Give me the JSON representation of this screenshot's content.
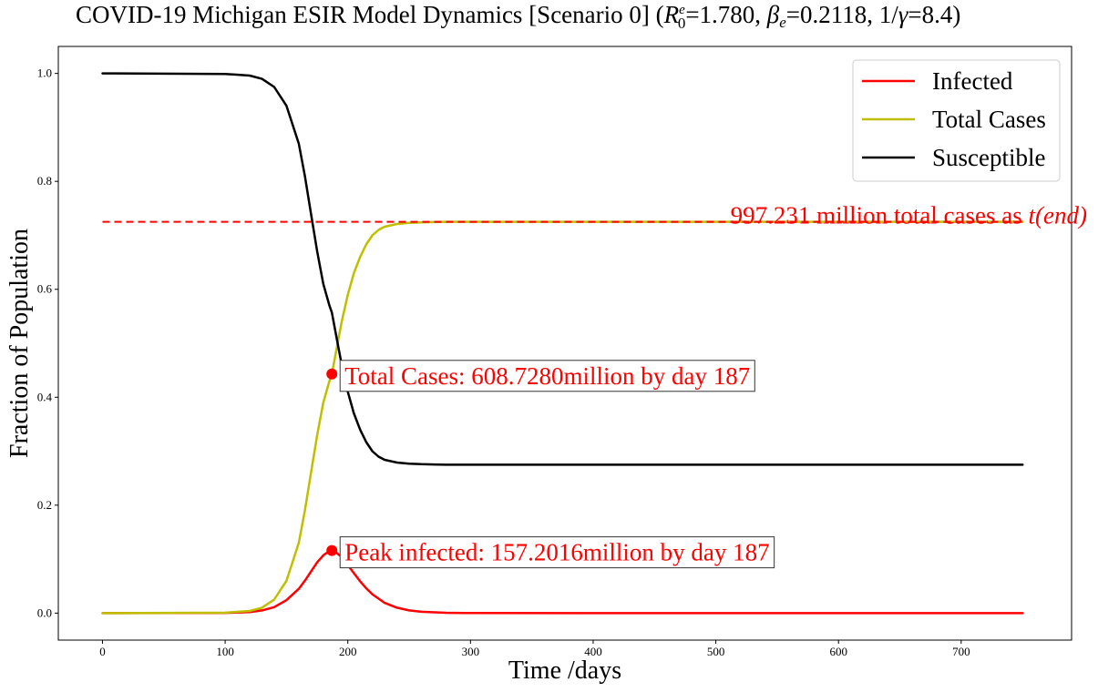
{
  "chart_data": {
    "type": "line",
    "title": {
      "prefix": "COVID-19 Michigan ESIR Model Dynamics [Scenario 0] (",
      "r_symbol": "R",
      "r_sup": "e",
      "r_sub": "0",
      "r_value": "=1.780, ",
      "beta_symbol": "β",
      "beta_sub": "e",
      "beta_value": "=0.2118, 1/",
      "gamma_symbol": "γ",
      "gamma_value": "=8.4)"
    },
    "xlabel": "Time /days",
    "ylabel": "Fraction of Population",
    "xlim": [
      -36,
      790
    ],
    "ylim": [
      -0.05,
      1.05
    ],
    "xticks": [
      0,
      100,
      200,
      300,
      400,
      500,
      600,
      700
    ],
    "yticks": [
      0.0,
      0.2,
      0.4,
      0.6,
      0.8,
      1.0
    ],
    "ytick_labels": [
      "0.0",
      "0.2",
      "0.4",
      "0.6",
      "0.8",
      "1.0"
    ],
    "grid": false,
    "legend_position": "top-right",
    "series": [
      {
        "name": "Infected",
        "color": "#ff0000",
        "x": [
          0,
          100,
          120,
          130,
          140,
          150,
          160,
          165,
          170,
          175,
          180,
          185,
          187,
          190,
          195,
          200,
          205,
          210,
          215,
          220,
          230,
          240,
          250,
          260,
          280,
          300,
          400,
          500,
          600,
          750
        ],
        "y": [
          0,
          0.0005,
          0.002,
          0.005,
          0.011,
          0.024,
          0.045,
          0.06,
          0.077,
          0.094,
          0.107,
          0.115,
          0.116,
          0.113,
          0.104,
          0.089,
          0.074,
          0.059,
          0.046,
          0.035,
          0.019,
          0.01,
          0.005,
          0.0025,
          0.0006,
          0.0001,
          0,
          0,
          0,
          0
        ]
      },
      {
        "name": "Total Cases",
        "color": "#bfbf00",
        "x": [
          0,
          100,
          120,
          130,
          140,
          150,
          160,
          165,
          170,
          175,
          180,
          185,
          187,
          190,
          195,
          200,
          205,
          210,
          215,
          220,
          225,
          230,
          240,
          250,
          260,
          270,
          280,
          300,
          400,
          750
        ],
        "y": [
          0,
          0.0008,
          0.004,
          0.01,
          0.025,
          0.06,
          0.13,
          0.19,
          0.26,
          0.33,
          0.39,
          0.43,
          0.443,
          0.48,
          0.54,
          0.59,
          0.63,
          0.66,
          0.683,
          0.7,
          0.71,
          0.716,
          0.721,
          0.723,
          0.724,
          0.7245,
          0.725,
          0.725,
          0.725,
          0.725
        ]
      },
      {
        "name": "Susceptible",
        "color": "#000000",
        "x": [
          0,
          100,
          120,
          130,
          140,
          150,
          160,
          165,
          170,
          175,
          180,
          185,
          187,
          190,
          195,
          200,
          205,
          210,
          215,
          220,
          225,
          230,
          240,
          250,
          260,
          270,
          280,
          300,
          400,
          750
        ],
        "y": [
          1.0,
          0.999,
          0.996,
          0.99,
          0.975,
          0.94,
          0.87,
          0.81,
          0.74,
          0.67,
          0.61,
          0.57,
          0.557,
          0.52,
          0.46,
          0.41,
          0.37,
          0.34,
          0.317,
          0.3,
          0.29,
          0.284,
          0.279,
          0.277,
          0.276,
          0.2755,
          0.275,
          0.275,
          0.275,
          0.275
        ]
      }
    ],
    "reference_line": {
      "y": 0.725,
      "x_start": 0,
      "x_end": 750,
      "color": "#ff0000",
      "style": "dashed",
      "label_prefix": "997.231 million total cases as ",
      "label_math": "t(end)"
    },
    "annotations": [
      {
        "name": "total-cases-annotation",
        "point_x": 187,
        "point_y": 0.443,
        "text": "Total Cases: 608.7280million by day 187"
      },
      {
        "name": "peak-infected-annotation",
        "point_x": 187,
        "point_y": 0.116,
        "text": "Peak infected: 157.2016million by day 187"
      }
    ]
  }
}
